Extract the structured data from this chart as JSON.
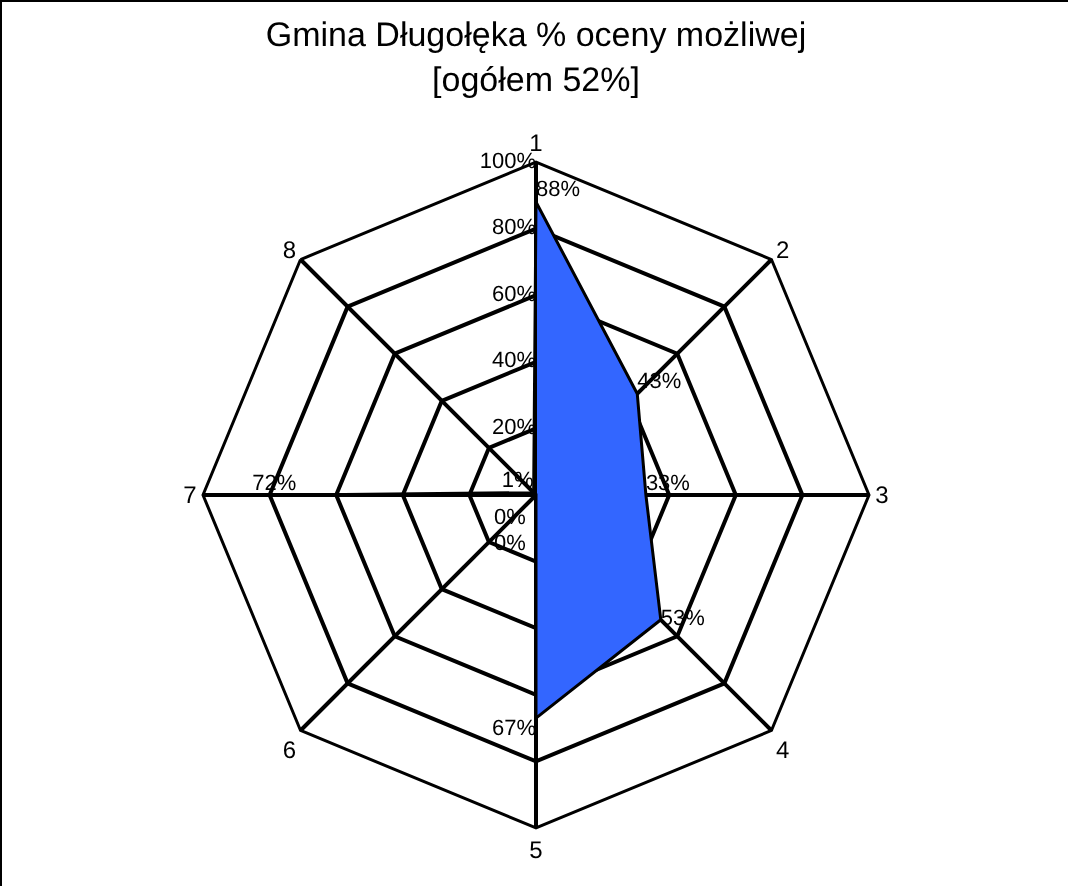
{
  "chart_data": {
    "type": "radar",
    "title": "Gmina Długołęka % oceny możliwej\n[ogółem 52%]",
    "categories": [
      "1",
      "2",
      "3",
      "4",
      "5",
      "6",
      "7",
      "8"
    ],
    "series": [
      {
        "color": "#3366ff",
        "values": [
          88,
          43,
          33,
          53,
          67,
          0,
          72,
          1
        ],
        "value_labels": [
          "88%",
          "43%",
          "33%",
          "53%",
          "67%",
          "0%",
          "72%",
          "1%"
        ]
      }
    ],
    "ylim": [
      0,
      100
    ],
    "yticks": [
      {
        "value": 0,
        "label": "0%"
      },
      {
        "value": 20,
        "label": "20%"
      },
      {
        "value": 40,
        "label": "40%"
      },
      {
        "value": 60,
        "label": "60%"
      },
      {
        "value": 80,
        "label": "80%"
      },
      {
        "value": 100,
        "label": "100%"
      }
    ],
    "grid": true
  }
}
